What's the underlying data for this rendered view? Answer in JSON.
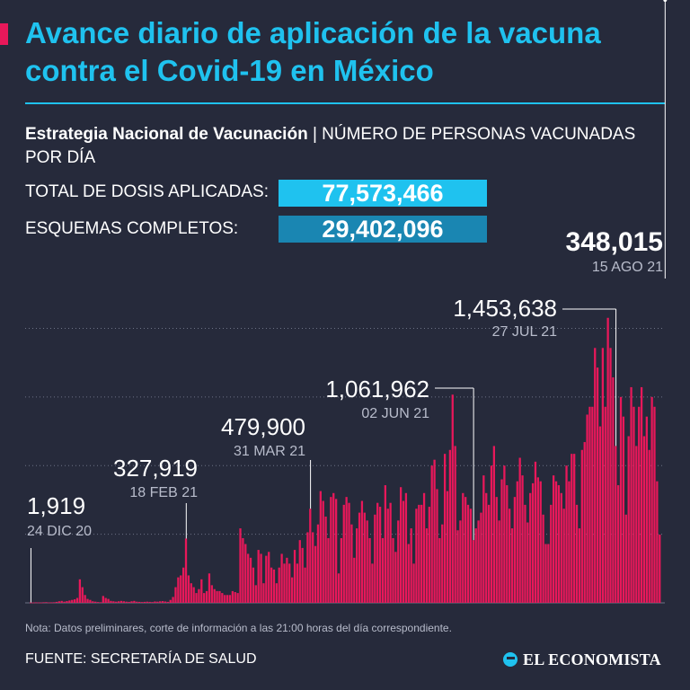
{
  "header": {
    "title": "Avance diario de aplicación de la vacuna contra el Covid-19 en México",
    "subtitle_bold": "Estrategia Nacional de Vacunación",
    "subtitle_rest": " | NÚMERO DE PERSONAS VACUNADAS POR DÍA"
  },
  "stats": {
    "total_label": "TOTAL DE DOSIS APLICADAS:",
    "total_value": "77,573,466",
    "complete_label": "ESQUEMAS COMPLETOS:",
    "complete_value": "29,402,096"
  },
  "colors": {
    "background": "#262a3b",
    "title": "#1fc2ef",
    "bar": "#e8185a",
    "total_box": "#1fc2ef",
    "complete_box": "#1a86b2"
  },
  "footer": {
    "note": "Nota: Datos preliminares, corte de información a las 21:00 horas del día correspondiente.",
    "source": "FUENTE: SECRETARÍA DE SALUD",
    "logo": "EL ECONOMISTA"
  },
  "chart_data": {
    "type": "bar",
    "title": "",
    "xlabel": "",
    "ylabel": "",
    "ylim": [
      0,
      1700000
    ],
    "grid": true,
    "x_range": [
      "24 DIC 20",
      "15 AGO 21"
    ],
    "values": [
      1919,
      2000,
      2500,
      2200,
      1500,
      3000,
      3500,
      2000,
      2500,
      3000,
      5000,
      8000,
      10000,
      6000,
      9000,
      12000,
      15000,
      18000,
      25000,
      120000,
      80000,
      40000,
      20000,
      15000,
      8000,
      6000,
      4000,
      3000,
      35000,
      25000,
      20000,
      10000,
      8000,
      6000,
      8000,
      10000,
      8000,
      6000,
      5000,
      8000,
      10000,
      6000,
      5000,
      4000,
      5000,
      6000,
      5000,
      4000,
      7000,
      6000,
      8000,
      9000,
      7000,
      5000,
      15000,
      30000,
      80000,
      130000,
      140000,
      180000,
      327919,
      140000,
      100000,
      80000,
      50000,
      70000,
      120000,
      50000,
      60000,
      150000,
      90000,
      70000,
      60000,
      60000,
      50000,
      40000,
      40000,
      40000,
      60000,
      55000,
      50000,
      380000,
      330000,
      300000,
      250000,
      230000,
      180000,
      90000,
      270000,
      250000,
      100000,
      240000,
      260000,
      180000,
      170000,
      100000,
      180000,
      250000,
      200000,
      230000,
      200000,
      130000,
      270000,
      200000,
      320000,
      280000,
      180000,
      360000,
      479900,
      360000,
      290000,
      400000,
      570000,
      520000,
      440000,
      330000,
      540000,
      560000,
      530000,
      150000,
      330000,
      500000,
      540000,
      510000,
      400000,
      230000,
      380000,
      460000,
      520000,
      460000,
      420000,
      330000,
      200000,
      450000,
      510000,
      490000,
      330000,
      600000,
      480000,
      510000,
      330000,
      260000,
      420000,
      590000,
      520000,
      560000,
      300000,
      380000,
      200000,
      480000,
      500000,
      500000,
      560000,
      380000,
      490000,
      700000,
      730000,
      580000,
      330000,
      400000,
      760000,
      570000,
      780000,
      1061962,
      800000,
      370000,
      420000,
      560000,
      540000,
      500000,
      480000,
      320000,
      380000,
      420000,
      460000,
      650000,
      560000,
      500000,
      700000,
      800000,
      540000,
      420000,
      630000,
      700000,
      600000,
      480000,
      380000,
      540000,
      620000,
      740000,
      650000,
      500000,
      410000,
      560000,
      610000,
      720000,
      640000,
      620000,
      450000,
      300000,
      300000,
      500000,
      650000,
      620000,
      600000,
      560000,
      480000,
      700000,
      620000,
      760000,
      760000,
      500000,
      380000,
      780000,
      820000,
      960000,
      1000000,
      1000000,
      1300000,
      1200000,
      900000,
      1300000,
      1000000,
      1453638,
      1300000,
      1150000,
      800000,
      600000,
      1050000,
      950000,
      450000,
      850000,
      1100000,
      1000000,
      800000,
      1000000,
      1100000,
      850000,
      950000,
      780000,
      1050000,
      1000000,
      620000,
      348015
    ],
    "annotations": [
      {
        "index": 0,
        "value": "1,919",
        "date": "24 DIC 20"
      },
      {
        "index": 60,
        "value": "327,919",
        "date": "18 FEB 21"
      },
      {
        "index": 108,
        "value": "479,900",
        "date": "31 MAR 21"
      },
      {
        "index": 171,
        "value": "1,061,962",
        "date": "02 JUN 21"
      },
      {
        "index": 226,
        "value": "1,453,638",
        "date": "27 JUL 21"
      },
      {
        "index": 245,
        "value": "348,015",
        "date": "15 AGO 21"
      }
    ]
  }
}
